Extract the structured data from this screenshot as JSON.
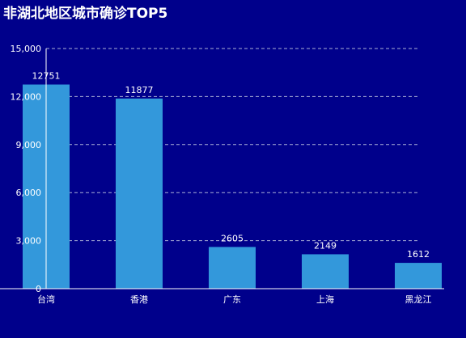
{
  "chart_data": {
    "type": "bar",
    "title": "非湖北地区城市确诊TOP5",
    "categories": [
      "台湾",
      "香港",
      "广东",
      "上海",
      "黑龙江"
    ],
    "values": [
      12751,
      11877,
      2605,
      2149,
      1612
    ],
    "value_labels": [
      "12751",
      "11877",
      "2605",
      "2149",
      "1612"
    ],
    "ylim": [
      0,
      15000
    ],
    "yticks": [
      0,
      3000,
      6000,
      9000,
      12000,
      15000
    ],
    "ytick_labels": [
      "0",
      "3,000",
      "6,000",
      "9,000",
      "12,000",
      "15,000"
    ],
    "grid": true,
    "xlabel": "",
    "ylabel": "",
    "colors": {
      "background": "#00008b",
      "bar": "#3398db",
      "text": "#ffffff",
      "grid": "#aab0d6"
    }
  }
}
